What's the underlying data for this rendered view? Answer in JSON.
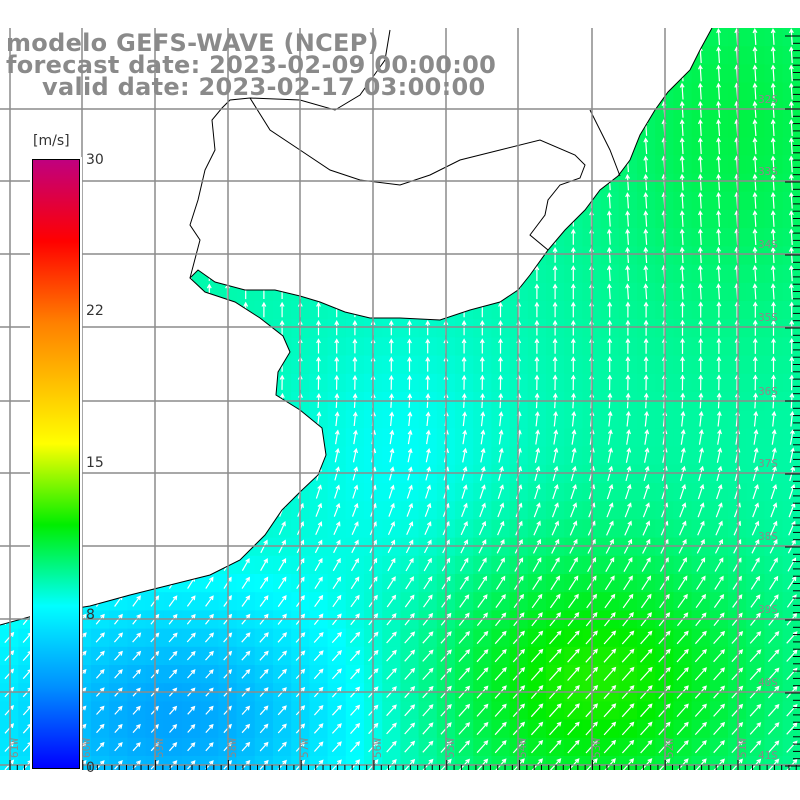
{
  "title": {
    "line1": "modelo GEFS-WAVE (NCEP)",
    "line2": "forecast date: 2023-02-09 00:00:00",
    "line3": "valid date: 2023-02-17 03:00:00"
  },
  "colorbar": {
    "unit": "[m/s]",
    "labels": [
      "30",
      "22",
      "15",
      "8",
      "0"
    ],
    "stops": [
      {
        "value": 30,
        "color": "#c0007f"
      },
      {
        "value": 26,
        "color": "#ff0000"
      },
      {
        "value": 22,
        "color": "#ff7f00"
      },
      {
        "value": 16,
        "color": "#ffff00"
      },
      {
        "value": 12,
        "color": "#00ee00"
      },
      {
        "value": 8,
        "color": "#00ffff"
      },
      {
        "value": 4,
        "color": "#0090ff"
      },
      {
        "value": 0,
        "color": "#0000ff"
      }
    ]
  },
  "axes": {
    "lon_labels": [
      "61W",
      "60W",
      "59W",
      "58W",
      "57W",
      "56W",
      "55W",
      "54W",
      "53W",
      "52W",
      "51W"
    ],
    "lat_labels": [
      "32S",
      "33S",
      "34S",
      "35S",
      "36S",
      "37S",
      "38S",
      "39S",
      "40S",
      "41S"
    ]
  },
  "colors": {
    "grid": "#8c8c8c",
    "label": "#8a8a8a",
    "land": "#ffffff",
    "arrow": "#ffffff"
  }
}
